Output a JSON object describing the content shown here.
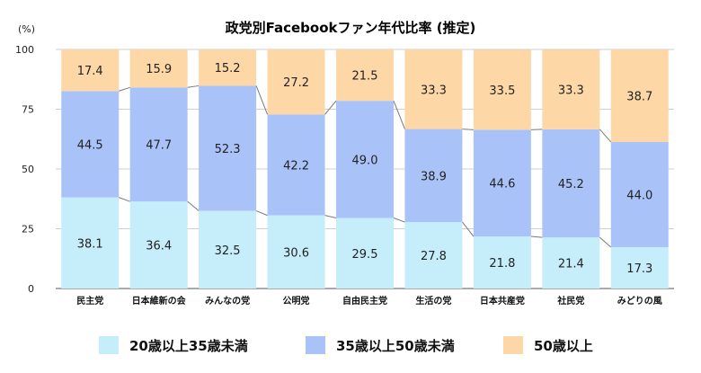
{
  "chart_data": {
    "type": "bar",
    "stacked": true,
    "title": "政党別Facebookファン年代比率 (推定)",
    "ylabel": "(%)",
    "ylim": [
      0,
      100
    ],
    "yticks": [
      0,
      25,
      50,
      75,
      100
    ],
    "grid": true,
    "legend_position": "bottom",
    "categories": [
      "民主党",
      "日本維新の会",
      "みんなの党",
      "公明党",
      "自由民主党",
      "生活の党",
      "日本共産党",
      "社民党",
      "みどりの風"
    ],
    "series": [
      {
        "name": "20歳以上35歳未満",
        "color": "#c5edfa",
        "values": [
          38.1,
          36.4,
          32.5,
          30.6,
          29.5,
          27.8,
          21.8,
          21.4,
          17.3
        ]
      },
      {
        "name": "35歳以上50歳未満",
        "color": "#a9c3f8",
        "values": [
          44.5,
          47.7,
          52.3,
          42.2,
          49.0,
          38.9,
          44.6,
          45.2,
          44.0
        ]
      },
      {
        "name": "50歳以上",
        "color": "#fdd7a6",
        "values": [
          17.4,
          15.9,
          15.2,
          27.2,
          21.5,
          33.3,
          33.5,
          33.3,
          38.7
        ]
      }
    ]
  }
}
